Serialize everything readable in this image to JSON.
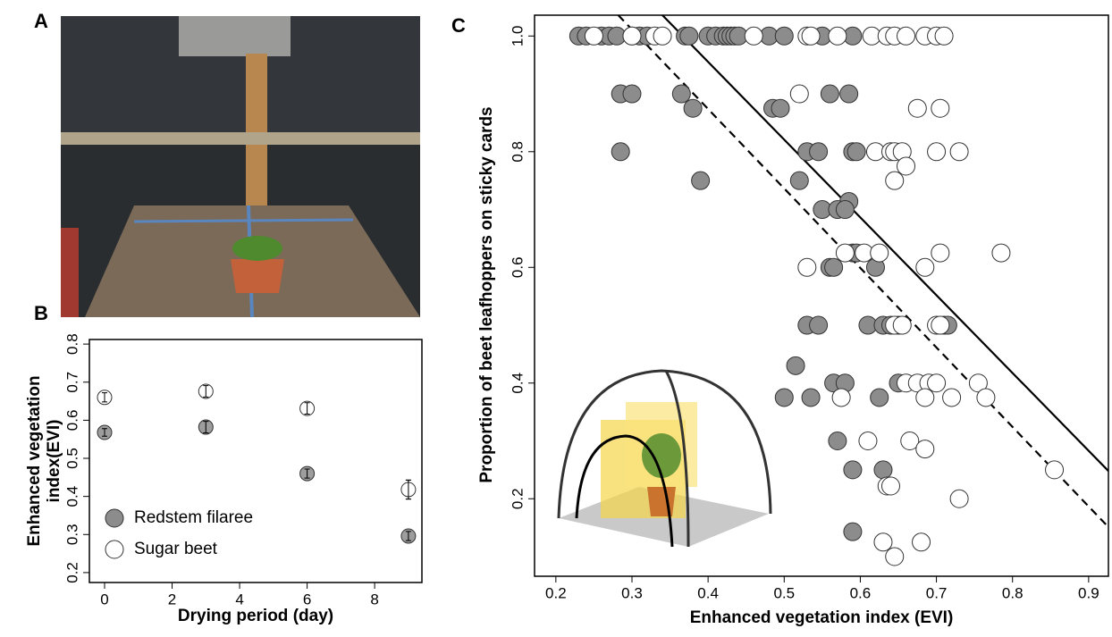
{
  "panels": [
    "A",
    "B",
    "C"
  ],
  "chart_data": [
    {
      "type": "scatter",
      "xlabel": "Drying period (day)",
      "ylabel": [
        "Enhanced vegetation",
        "index(EVI)"
      ],
      "xlim": [
        -0.45,
        9.4
      ],
      "ylim": [
        0.174,
        0.812
      ],
      "xticks": [
        0,
        2,
        4,
        6,
        8
      ],
      "yticks": [
        0.2,
        0.3,
        0.4,
        0.5,
        0.6,
        0.7,
        0.8
      ],
      "legend": "bottom-left",
      "series": [
        {
          "name": "Redstem filaree",
          "color": "#8c8c8c",
          "x": [
            0,
            3,
            6,
            9
          ],
          "values": [
            0.568,
            0.582,
            0.46,
            0.296
          ],
          "errors": [
            0.01,
            0.015,
            0.012,
            0.012
          ]
        },
        {
          "name": "Sugar beet",
          "color": "#ffffff",
          "x": [
            0,
            3,
            6,
            9
          ],
          "values": [
            0.66,
            0.676,
            0.631,
            0.418
          ],
          "errors": [
            0.012,
            0.015,
            0.015,
            0.025
          ]
        }
      ]
    },
    {
      "type": "scatter",
      "xlabel": "Enhanced vegetation index (EVI)",
      "ylabel": [
        "Proportion of beet leafhoppers on sticky cards"
      ],
      "xlim": [
        0.172,
        0.926
      ],
      "ylim": [
        0.066,
        1.036
      ],
      "xticks": [
        0.2,
        0.3,
        0.4,
        0.5,
        0.6,
        0.7,
        0.8,
        0.9
      ],
      "yticks": [
        0.2,
        0.4,
        0.6,
        0.8,
        {
          "value": 1,
          "label": "1.0"
        }
      ],
      "series": [
        {
          "color": "#8c8c8c",
          "x": [
            0.23,
            0.24,
            0.26,
            0.27,
            0.28,
            0.3,
            0.31,
            0.32,
            0.37,
            0.375,
            0.4,
            0.41,
            0.42,
            0.425,
            0.43,
            0.435,
            0.44,
            0.48,
            0.5,
            0.55,
            0.59,
            0.285,
            0.3,
            0.365,
            0.56,
            0.585,
            0.38,
            0.485,
            0.495,
            0.285,
            0.53,
            0.545,
            0.59,
            0.595,
            0.39,
            0.52,
            0.585,
            0.55,
            0.57,
            0.58,
            0.59,
            0.595,
            0.56,
            0.565,
            0.62,
            0.53,
            0.545,
            0.61,
            0.63,
            0.64,
            0.65,
            0.71,
            0.715,
            0.515,
            0.565,
            0.58,
            0.65,
            0.5,
            0.535,
            0.625,
            0.57,
            0.59,
            0.63,
            0.59
          ],
          "values": [
            1,
            1,
            1,
            1,
            1,
            1,
            1,
            1,
            1,
            1,
            1,
            1,
            1,
            1,
            1,
            1,
            1,
            1,
            1,
            1,
            1,
            0.9,
            0.9,
            0.9,
            0.9,
            0.9,
            0.875,
            0.875,
            0.875,
            0.8,
            0.8,
            0.8,
            0.8,
            0.8,
            0.75,
            0.75,
            0.714,
            0.7,
            0.7,
            0.7,
            0.625,
            0.625,
            0.6,
            0.6,
            0.6,
            0.5,
            0.5,
            0.5,
            0.5,
            0.5,
            0.5,
            0.5,
            0.5,
            0.43,
            0.4,
            0.4,
            0.4,
            0.375,
            0.375,
            0.375,
            0.3,
            0.25,
            0.25,
            0.143
          ]
        },
        {
          "color": "#ffffff",
          "x": [
            0.25,
            0.3,
            0.33,
            0.34,
            0.46,
            0.53,
            0.535,
            0.57,
            0.615,
            0.635,
            0.645,
            0.66,
            0.685,
            0.7,
            0.71,
            0.52,
            0.675,
            0.705,
            0.62,
            0.64,
            0.645,
            0.655,
            0.7,
            0.73,
            0.66,
            0.645,
            0.58,
            0.605,
            0.625,
            0.705,
            0.785,
            0.53,
            0.685,
            0.645,
            0.655,
            0.7,
            0.705,
            0.66,
            0.675,
            0.69,
            0.7,
            0.755,
            0.575,
            0.685,
            0.72,
            0.765,
            0.61,
            0.665,
            0.685,
            0.855,
            0.635,
            0.64,
            0.73,
            0.63,
            0.68,
            0.645
          ],
          "values": [
            1,
            1,
            1,
            1,
            1,
            1,
            1,
            1,
            1,
            1,
            1,
            1,
            1,
            1,
            1,
            0.9,
            0.875,
            0.875,
            0.8,
            0.8,
            0.8,
            0.8,
            0.8,
            0.8,
            0.775,
            0.75,
            0.625,
            0.625,
            0.625,
            0.625,
            0.625,
            0.6,
            0.6,
            0.5,
            0.5,
            0.5,
            0.5,
            0.4,
            0.4,
            0.4,
            0.4,
            0.4,
            0.375,
            0.375,
            0.375,
            0.375,
            0.3,
            0.3,
            0.286,
            0.25,
            0.222,
            0.222,
            0.2,
            0.125,
            0.125,
            0.1
          ]
        }
      ],
      "lines": [
        {
          "style": "solid",
          "x": [
            0.34,
            0.926
          ],
          "values": [
            1.036,
            0.248
          ]
        },
        {
          "style": "dashed",
          "x": [
            0.282,
            0.926
          ],
          "values": [
            1.036,
            0.151
          ]
        }
      ]
    }
  ]
}
